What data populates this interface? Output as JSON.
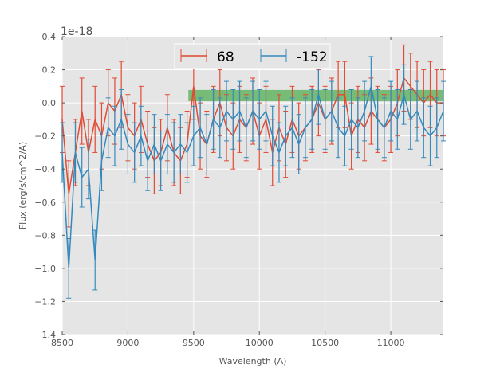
{
  "chart_data": {
    "type": "line",
    "title": "",
    "xlabel": "Wavelength (A)",
    "ylabel": "Flux (erg/s/cm^2/A)",
    "offset_text": "1e-18",
    "xlim": [
      8500,
      11400
    ],
    "ylim": [
      -1.4,
      0.4
    ],
    "xticks": [
      8500,
      9000,
      9500,
      10000,
      10500,
      11000
    ],
    "xtick_labels": [
      "8500",
      "9000",
      "9500",
      "10000",
      "10500",
      "11000"
    ],
    "yticks": [
      0.4,
      0.2,
      0.0,
      -0.2,
      -0.4,
      -0.6,
      -0.8,
      -1.0,
      -1.2,
      -1.4
    ],
    "ytick_labels": [
      "0.4",
      "0.2",
      "0.0",
      "−0.2",
      "−0.4",
      "−0.6",
      "−0.8",
      "−1.0",
      "−1.2",
      "−1.4"
    ],
    "grid": true,
    "legend_placement": "top-center",
    "band": {
      "x": [
        9460,
        11400
      ],
      "y": [
        0.01,
        0.078
      ],
      "color": "#2ca02c"
    },
    "x": [
      8500,
      8550,
      8600,
      8650,
      8700,
      8750,
      8800,
      8850,
      8900,
      8950,
      9000,
      9050,
      9100,
      9150,
      9200,
      9250,
      9300,
      9350,
      9400,
      9450,
      9500,
      9550,
      9600,
      9650,
      9700,
      9750,
      9800,
      9850,
      9900,
      9950,
      10000,
      10050,
      10100,
      10150,
      10200,
      10250,
      10300,
      10350,
      10400,
      10450,
      10500,
      10550,
      10600,
      10650,
      10700,
      10750,
      10800,
      10850,
      10900,
      10950,
      11000,
      11050,
      11100,
      11150,
      11200,
      11250,
      11300,
      11350,
      11400
    ],
    "series": [
      {
        "name": "68",
        "color": "#e24a33",
        "yerr": 0.2,
        "values": [
          -0.1,
          -0.55,
          -0.3,
          -0.05,
          -0.3,
          -0.1,
          -0.2,
          0.0,
          -0.05,
          0.05,
          -0.15,
          -0.2,
          -0.1,
          -0.25,
          -0.35,
          -0.3,
          -0.15,
          -0.3,
          -0.35,
          -0.25,
          0.1,
          -0.2,
          -0.25,
          -0.1,
          0.0,
          -0.15,
          -0.2,
          -0.1,
          -0.15,
          -0.05,
          -0.2,
          -0.1,
          -0.3,
          -0.15,
          -0.25,
          -0.1,
          -0.2,
          -0.15,
          -0.1,
          0.0,
          -0.1,
          -0.05,
          0.05,
          0.05,
          -0.2,
          -0.1,
          -0.15,
          -0.05,
          -0.1,
          -0.15,
          -0.1,
          0.0,
          0.15,
          0.1,
          0.05,
          0.0,
          0.05,
          0.0,
          0.0
        ]
      },
      {
        "name": "-152",
        "color": "#348abd",
        "yerr": 0.18,
        "values": [
          -0.3,
          -1.0,
          -0.3,
          -0.45,
          -0.4,
          -0.95,
          -0.35,
          -0.15,
          -0.2,
          -0.1,
          -0.25,
          -0.3,
          -0.2,
          -0.35,
          -0.25,
          -0.35,
          -0.25,
          -0.3,
          -0.25,
          -0.3,
          -0.2,
          -0.15,
          -0.25,
          -0.1,
          -0.15,
          -0.05,
          -0.1,
          -0.05,
          -0.15,
          -0.05,
          -0.1,
          -0.05,
          -0.2,
          -0.3,
          -0.2,
          -0.15,
          -0.25,
          -0.15,
          -0.1,
          0.05,
          -0.1,
          -0.05,
          -0.15,
          -0.2,
          -0.1,
          -0.15,
          -0.05,
          0.1,
          -0.1,
          -0.15,
          -0.05,
          -0.1,
          0.05,
          -0.1,
          -0.05,
          -0.15,
          -0.2,
          -0.15,
          -0.05
        ]
      }
    ]
  }
}
